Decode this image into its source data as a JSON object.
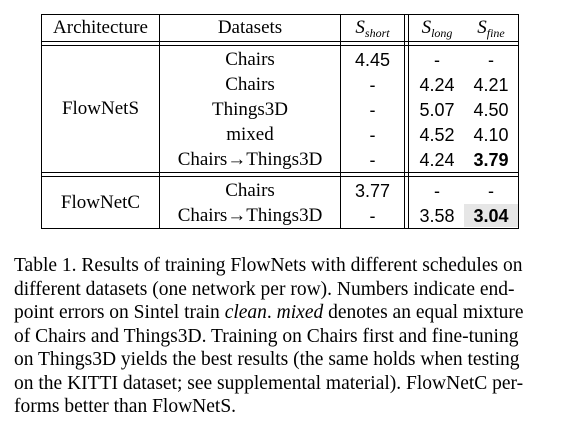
{
  "table": {
    "headers": {
      "architecture": "Architecture",
      "datasets": "Datasets",
      "s_short_base": "S",
      "s_short_sub": "short",
      "s_long_base": "S",
      "s_long_sub": "long",
      "s_fine_base": "S",
      "s_fine_sub": "fine"
    },
    "groups": [
      {
        "architecture": "FlowNetS",
        "rows": [
          {
            "dataset": "Chairs",
            "short": "4.45",
            "long": "-",
            "fine": "-"
          },
          {
            "dataset": "Chairs",
            "short": "-",
            "long": "4.24",
            "fine": "4.21"
          },
          {
            "dataset": "Things3D",
            "short": "-",
            "long": "5.07",
            "fine": "4.50"
          },
          {
            "dataset": "mixed",
            "short": "-",
            "long": "4.52",
            "fine": "4.10"
          },
          {
            "dataset": "Chairs→Things3D",
            "short": "-",
            "long": "4.24",
            "fine": "3.79"
          }
        ]
      },
      {
        "architecture": "FlowNetC",
        "rows": [
          {
            "dataset": "Chairs",
            "short": "3.77",
            "long": "-",
            "fine": "-"
          },
          {
            "dataset": "Chairs→Things3D",
            "short": "-",
            "long": "3.58",
            "fine": "3.04"
          }
        ]
      }
    ]
  },
  "caption": {
    "line1": "Table 1.  Results of training FlowNets with different schedules on",
    "line2": "different datasets (one network per row).  Numbers indicate end-",
    "line3_a": "point errors on Sintel train ",
    "line3_i1": "clean",
    "line3_b": ". ",
    "line3_i2": "mixed",
    "line3_c": " denotes an equal mixture",
    "line4": "of Chairs and Things3D. Training on Chairs first and fine-tuning",
    "line5": "on Things3D yields the best results (the same holds when testing",
    "line6": "on the KITTI dataset; see supplemental material). FlowNetC per-",
    "line7": "forms better than FlowNetS."
  }
}
